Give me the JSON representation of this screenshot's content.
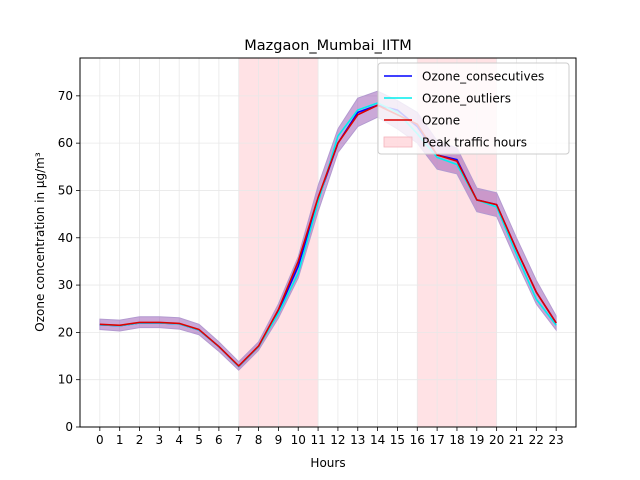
{
  "chart_data": {
    "type": "line",
    "title": "Mazgaon_Mumbai_IITM",
    "xlabel": "Hours",
    "ylabel": "Ozone concentration in µg/m³",
    "x": [
      0,
      1,
      2,
      3,
      4,
      5,
      6,
      7,
      8,
      9,
      10,
      11,
      12,
      13,
      14,
      15,
      16,
      17,
      18,
      19,
      20,
      21,
      22,
      23
    ],
    "xticks": [
      "0",
      "1",
      "2",
      "3",
      "4",
      "5",
      "6",
      "7",
      "8",
      "9",
      "10",
      "11",
      "12",
      "13",
      "14",
      "15",
      "16",
      "17",
      "18",
      "19",
      "20",
      "21",
      "22",
      "23"
    ],
    "xlim": [
      -1.0,
      24.0
    ],
    "ylim": [
      0,
      78
    ],
    "yticks": [
      0,
      10,
      20,
      30,
      40,
      50,
      60,
      70
    ],
    "grid": true,
    "legend_position": "top-right",
    "series": [
      {
        "name": "Ozone_consecutives",
        "color": "#0000ff",
        "values": [
          21.6,
          21.4,
          22.0,
          22.0,
          21.8,
          20.5,
          17.0,
          12.8,
          17.0,
          24.5,
          34.0,
          48.0,
          60.0,
          66.5,
          68.0,
          67.0,
          63.5,
          57.5,
          56.5,
          48.0,
          47.0,
          37.5,
          28.5,
          22.0
        ]
      },
      {
        "name": "Ozone_outliers",
        "color": "#00eeee",
        "values": [
          21.6,
          21.4,
          22.0,
          22.0,
          21.8,
          20.5,
          17.0,
          12.8,
          17.0,
          24.0,
          32.5,
          47.5,
          61.5,
          67.0,
          68.5,
          66.5,
          62.0,
          57.0,
          55.5,
          48.0,
          46.5,
          36.5,
          27.0,
          21.5
        ]
      },
      {
        "name": "Ozone",
        "color": "#dd0000",
        "values": [
          21.7,
          21.5,
          22.1,
          22.1,
          21.9,
          20.6,
          17.0,
          12.9,
          17.1,
          24.8,
          35.0,
          48.5,
          60.0,
          66.0,
          68.0,
          66.0,
          64.0,
          57.5,
          56.2,
          48.0,
          47.0,
          37.5,
          28.5,
          22.0
        ]
      }
    ],
    "confidence_band": {
      "color": "#8a3fa8",
      "lower": [
        20.6,
        20.3,
        21.0,
        21.0,
        20.7,
        19.5,
        16.0,
        12.0,
        16.2,
        23.0,
        31.5,
        45.5,
        58.0,
        63.5,
        65.5,
        63.0,
        60.0,
        54.5,
        53.5,
        45.5,
        44.5,
        35.0,
        26.0,
        20.5
      ],
      "upper": [
        22.8,
        22.6,
        23.3,
        23.3,
        23.1,
        21.7,
        18.0,
        13.8,
        18.0,
        26.0,
        36.0,
        51.0,
        63.0,
        69.5,
        71.0,
        69.0,
        66.5,
        60.5,
        59.0,
        50.5,
        49.5,
        40.0,
        31.0,
        23.5
      ]
    },
    "shaded_regions": [
      {
        "label": "Peak traffic hours",
        "x_start": 7,
        "x_end": 11,
        "color": "#ffcfd4"
      },
      {
        "label": "Peak traffic hours",
        "x_start": 16,
        "x_end": 20,
        "color": "#ffcfd4"
      }
    ],
    "legend": [
      {
        "label": "Ozone_consecutives",
        "kind": "line",
        "color": "#0000ff"
      },
      {
        "label": "Ozone_outliers",
        "kind": "line",
        "color": "#00eeee"
      },
      {
        "label": "Ozone",
        "kind": "line",
        "color": "#dd0000"
      },
      {
        "label": "Peak traffic hours",
        "kind": "patch",
        "color": "#ffcfd4"
      }
    ]
  }
}
